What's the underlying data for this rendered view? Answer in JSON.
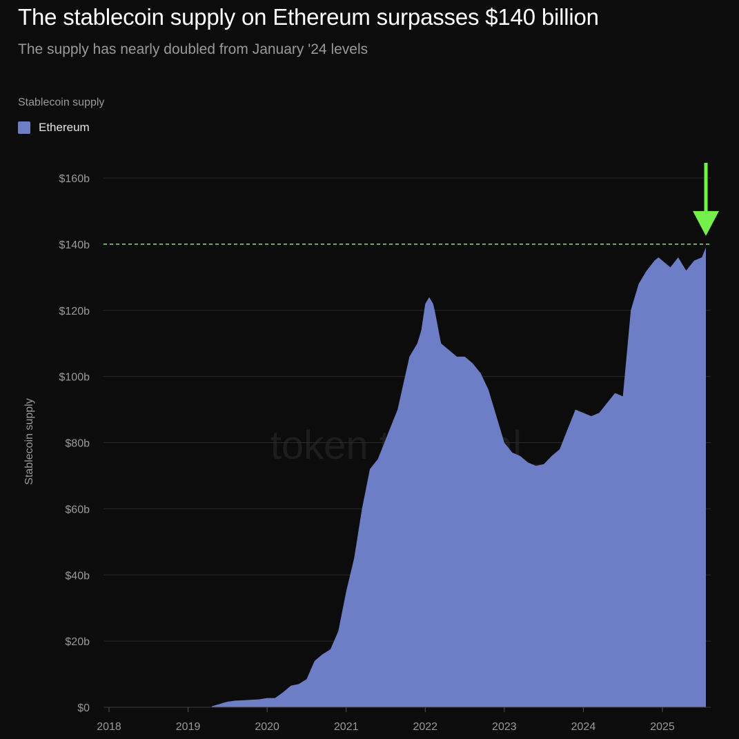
{
  "header": {
    "title": "The stablecoin supply on Ethereum surpasses $140 billion",
    "subtitle": "The supply has nearly doubled from January '24 levels"
  },
  "legend": {
    "title": "Stablecoin supply",
    "items": [
      {
        "label": "Ethereum",
        "color": "#6d7ec6"
      }
    ]
  },
  "watermark": "token terminal_",
  "colors": {
    "background": "#0c0c0c",
    "area": "#6d7ec6",
    "gridline": "#2a2a2a",
    "tick_text": "#9a9a9a",
    "reference_line": "#8fe36f",
    "arrow": "#74f04d"
  },
  "chart_data": {
    "type": "area",
    "ylabel": "Stablecoin supply",
    "xlabel": "",
    "ylim": [
      0,
      165
    ],
    "yticks": [
      0,
      20,
      40,
      60,
      80,
      100,
      120,
      140,
      160
    ],
    "ytick_labels": [
      "$0",
      "$20b",
      "$40b",
      "$60b",
      "$80b",
      "$100b",
      "$120b",
      "$140b",
      "$160b"
    ],
    "xlim": [
      2018,
      2025.6
    ],
    "xticks": [
      2018,
      2019,
      2020,
      2021,
      2022,
      2023,
      2024,
      2025
    ],
    "xtick_labels": [
      "2018",
      "2019",
      "2020",
      "2021",
      "2022",
      "2023",
      "2024",
      "2025"
    ],
    "grid": true,
    "legend_position": "top-left",
    "reference_line": {
      "y": 140,
      "style": "dashed"
    },
    "annotation": {
      "type": "arrow-down",
      "x": 2025.55,
      "y": 140
    },
    "series": [
      {
        "name": "Ethereum",
        "x": [
          2019.3,
          2019.4,
          2019.5,
          2019.6,
          2019.75,
          2019.9,
          2020.0,
          2020.1,
          2020.2,
          2020.3,
          2020.4,
          2020.5,
          2020.6,
          2020.7,
          2020.8,
          2020.9,
          2021.0,
          2021.05,
          2021.1,
          2021.2,
          2021.3,
          2021.4,
          2021.45,
          2021.55,
          2021.65,
          2021.8,
          2021.9,
          2021.95,
          2022.0,
          2022.05,
          2022.1,
          2022.12,
          2022.2,
          2022.3,
          2022.4,
          2022.5,
          2022.6,
          2022.7,
          2022.8,
          2022.9,
          2023.0,
          2023.1,
          2023.2,
          2023.3,
          2023.4,
          2023.5,
          2023.6,
          2023.7,
          2023.8,
          2023.9,
          2024.0,
          2024.1,
          2024.2,
          2024.3,
          2024.4,
          2024.5,
          2024.6,
          2024.7,
          2024.8,
          2024.9,
          2024.95,
          2025.0,
          2025.1,
          2025.2,
          2025.3,
          2025.4,
          2025.5,
          2025.55
        ],
        "values": [
          0.3,
          1.0,
          1.7,
          2.0,
          2.2,
          2.4,
          2.8,
          2.8,
          4.5,
          6.5,
          7.0,
          8.5,
          14.0,
          16.0,
          17.5,
          23.0,
          35.0,
          40.0,
          45.0,
          60.0,
          72.0,
          75.0,
          78.0,
          84.0,
          90.0,
          106.0,
          110.0,
          114.0,
          122.0,
          124.0,
          122.0,
          120.0,
          110.0,
          108.0,
          106.0,
          106.0,
          104.0,
          101.0,
          96.0,
          88.0,
          80.0,
          77.0,
          76.0,
          74.0,
          73.0,
          73.5,
          76.0,
          78.0,
          84.0,
          90.0,
          89.0,
          88.0,
          89.0,
          92.0,
          95.0,
          94.0,
          120.0,
          128.0,
          132.0,
          135.0,
          136.0,
          135.0,
          133.0,
          136.0,
          132.0,
          135.0,
          136.0,
          139.0
        ]
      }
    ]
  }
}
